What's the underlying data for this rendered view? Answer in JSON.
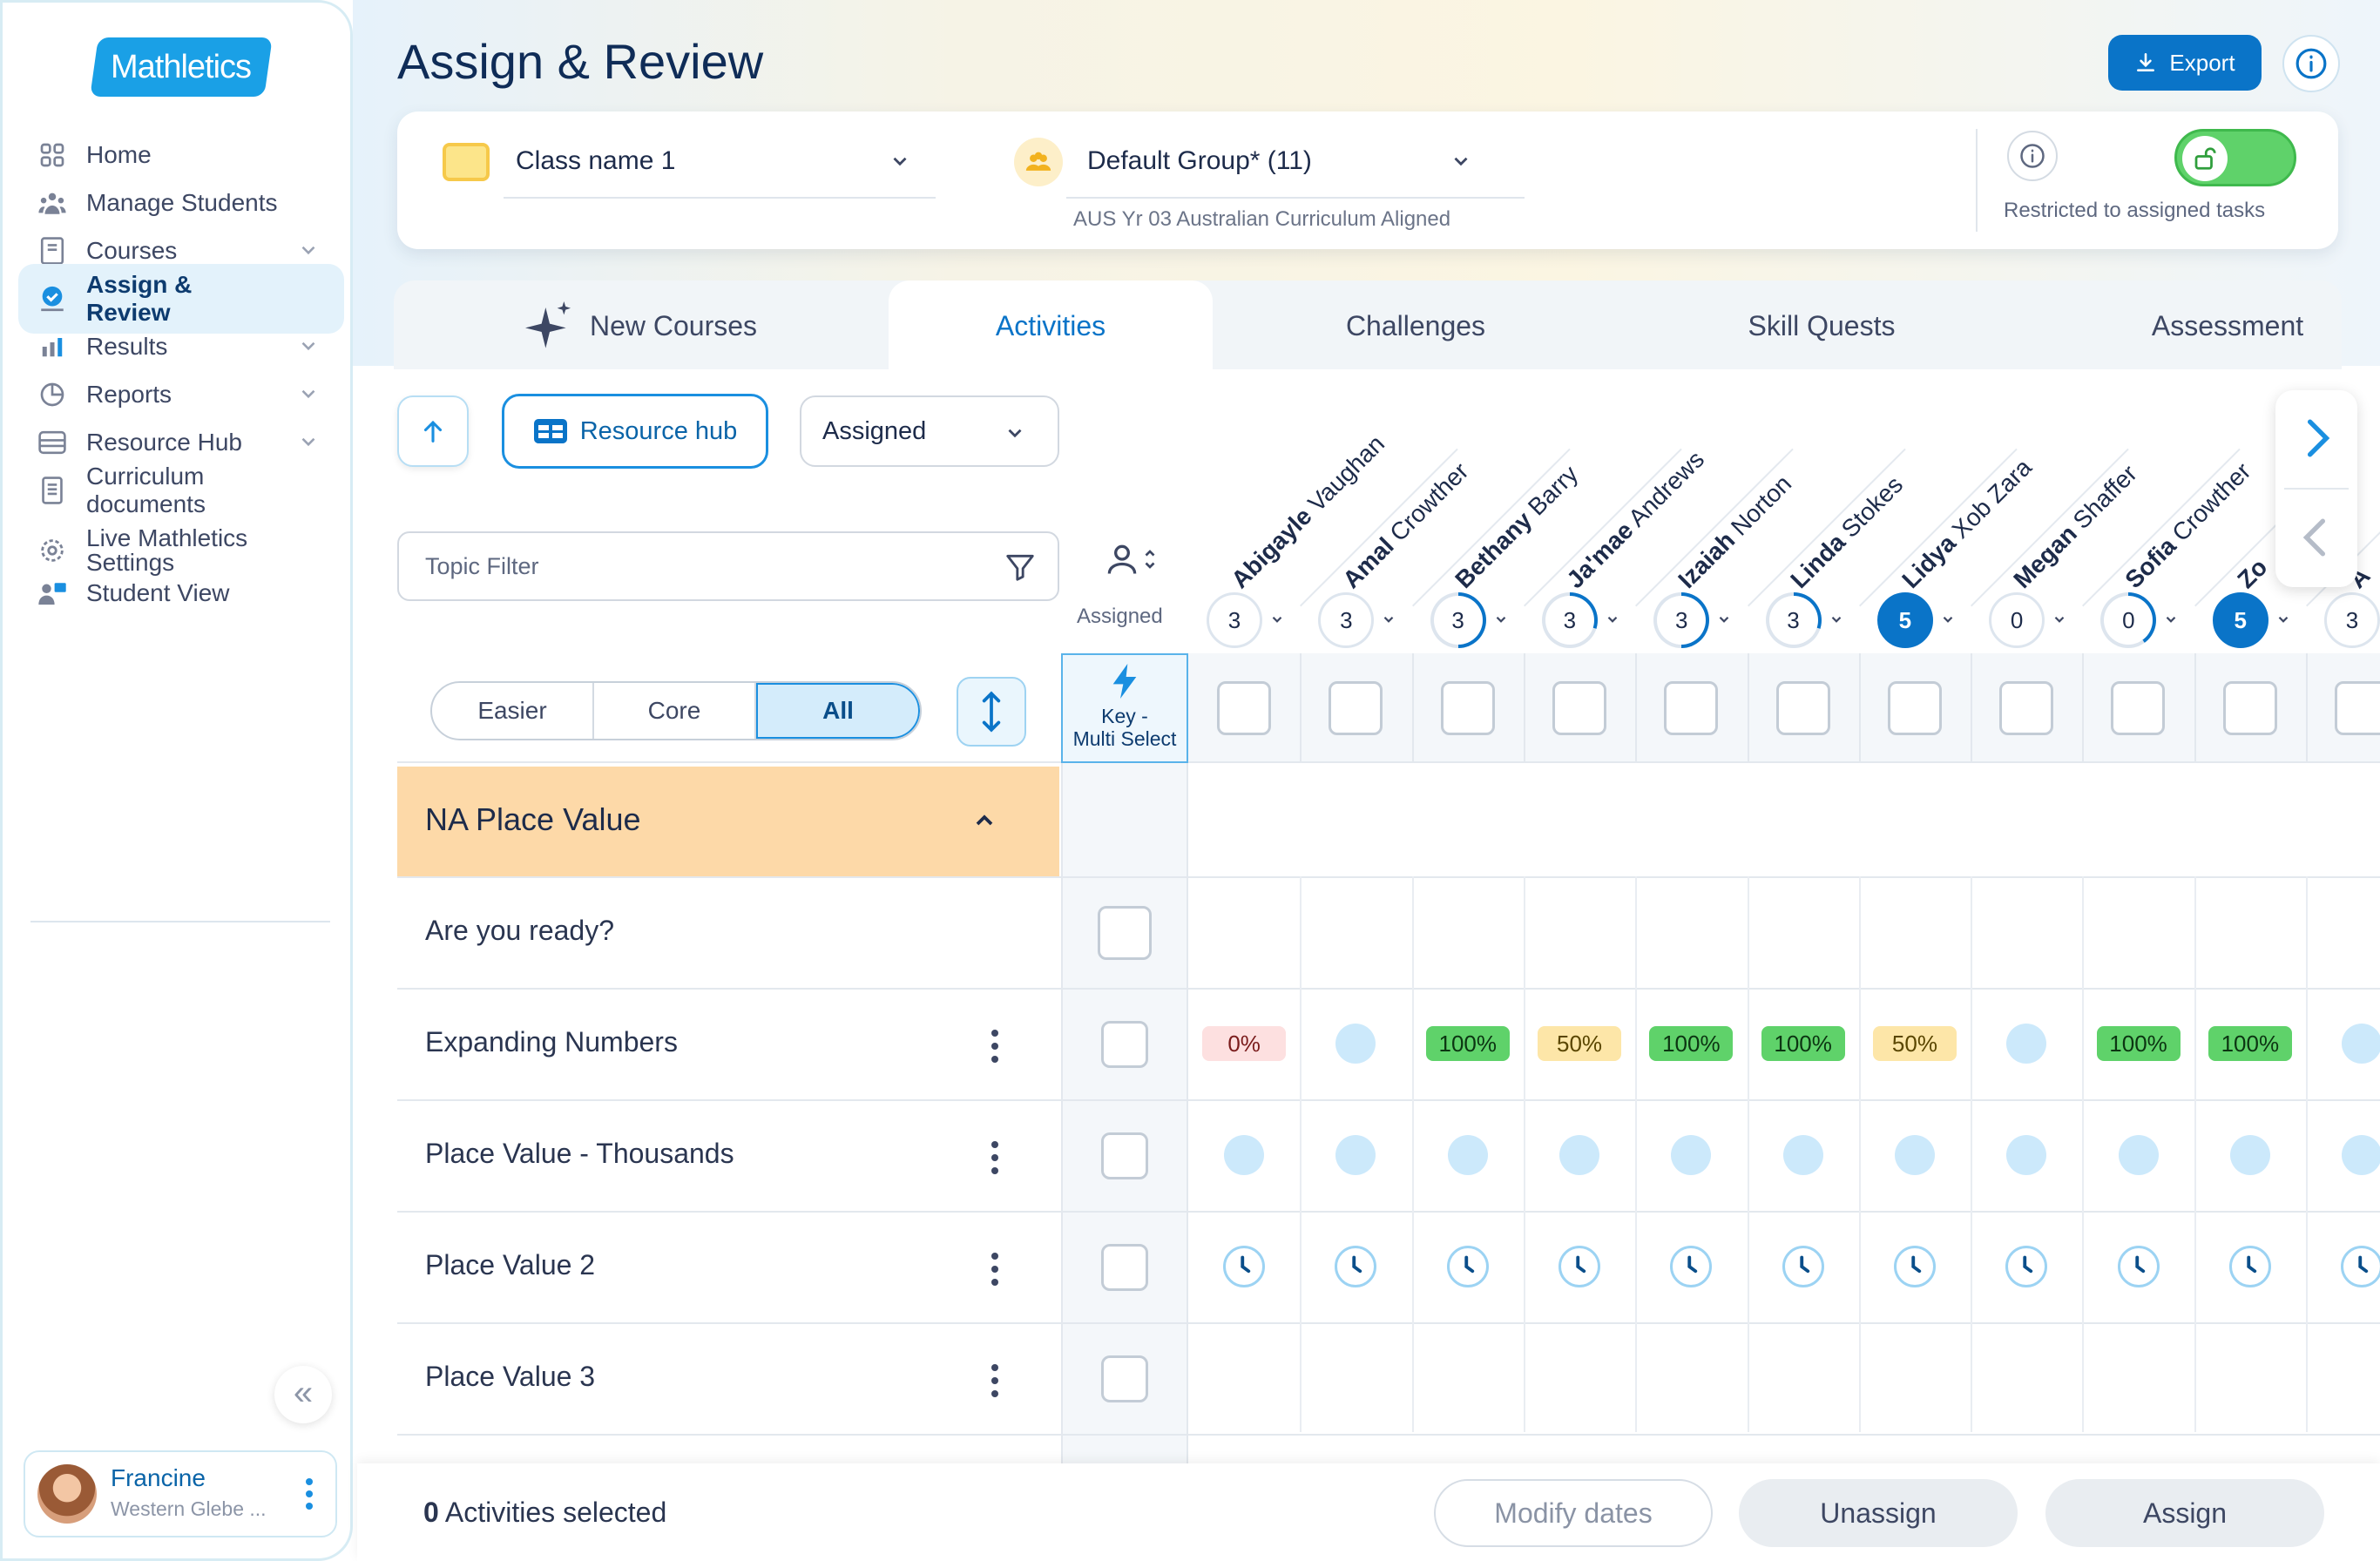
{
  "app": {
    "logo": "Mathletics",
    "page_title": "Assign & Review",
    "export_label": "Export"
  },
  "sidebar": {
    "items": [
      {
        "label": "Home",
        "icon": "grid-icon",
        "has_chevron": false,
        "active": false
      },
      {
        "label": "Manage Students",
        "icon": "students-icon",
        "has_chevron": false,
        "active": false
      },
      {
        "label": "Courses",
        "icon": "courses-icon",
        "has_chevron": true,
        "active": false
      },
      {
        "label": "Assign & Review",
        "icon": "assign-check-icon",
        "has_chevron": false,
        "active": true
      },
      {
        "label": "Results",
        "icon": "bar-chart-icon",
        "has_chevron": true,
        "active": false
      },
      {
        "label": "Reports",
        "icon": "pie-chart-icon",
        "has_chevron": true,
        "active": false
      },
      {
        "label": "Resource Hub",
        "icon": "resource-hub-icon",
        "has_chevron": true,
        "active": false
      },
      {
        "label": "Curriculum documents",
        "icon": "document-icon",
        "has_chevron": false,
        "active": false
      },
      {
        "label": "Live Mathletics Settings",
        "icon": "settings-icon",
        "has_chevron": false,
        "active": false
      },
      {
        "label": "Student View",
        "icon": "student-view-icon",
        "has_chevron": false,
        "active": false
      }
    ],
    "user": {
      "name": "Francine",
      "school": "Western Glebe ..."
    }
  },
  "header": {
    "class_name": "Class name 1",
    "group": "Default Group* (11)",
    "curriculum": "AUS Yr 03 Australian Curriculum Aligned",
    "restricted_label": "Restricted to assigned tasks",
    "restricted_on": true
  },
  "tabs": [
    {
      "label": "New Courses",
      "active": false
    },
    {
      "label": "Activities",
      "active": true
    },
    {
      "label": "Challenges",
      "active": false
    },
    {
      "label": "Skill Quests",
      "active": false
    },
    {
      "label": "Assessment",
      "active": false
    }
  ],
  "toolbar": {
    "resource_hub": "Resource hub",
    "assigned_select": "Assigned",
    "topic_placeholder": "Topic Filter",
    "assigned_label": "Assigned",
    "levels": [
      "Easier",
      "Core",
      "All"
    ],
    "active_level": "All",
    "key_line1": "Key -",
    "key_line2": "Multi Select"
  },
  "students": [
    {
      "first": "Abigayle",
      "last": "Vaughan",
      "count": "3",
      "progress": 0
    },
    {
      "first": "Amal",
      "last": "Crowther",
      "count": "3",
      "progress": 0
    },
    {
      "first": "Bethany",
      "last": "Barry",
      "count": "3",
      "progress": 0.5
    },
    {
      "first": "Ja'mae",
      "last": "Andrews",
      "count": "3",
      "progress": 0.3
    },
    {
      "first": "Izaiah",
      "last": "Norton",
      "count": "3",
      "progress": 0.5
    },
    {
      "first": "Linda",
      "last": "Stokes",
      "count": "3",
      "progress": 0.3
    },
    {
      "first": "Lidya",
      "last": "Xob Zara",
      "count": "5",
      "progress": 1
    },
    {
      "first": "Megan",
      "last": "Shaffer",
      "count": "0",
      "progress": 0
    },
    {
      "first": "Sofia",
      "last": "Crowther",
      "count": "0",
      "progress": 0.4
    },
    {
      "first": "Zo",
      "last": "",
      "count": "5",
      "progress": 1
    },
    {
      "first": "A",
      "last": "",
      "count": "3",
      "progress": 0
    }
  ],
  "topic": {
    "title": "NA Place Value"
  },
  "activities": [
    {
      "name": "Are you ready?",
      "has_menu": false,
      "cells": []
    },
    {
      "name": "Expanding Numbers",
      "has_menu": true,
      "cells": [
        "0%",
        "dot",
        "100%",
        "50%",
        "100%",
        "100%",
        "50%",
        "dot",
        "100%",
        "100%",
        "dot"
      ]
    },
    {
      "name": "Place Value - Thousands",
      "has_menu": true,
      "cells": [
        "dot",
        "dot",
        "dot",
        "dot",
        "dot",
        "dot",
        "dot",
        "dot",
        "dot",
        "dot",
        "dot"
      ]
    },
    {
      "name": "Place Value 2",
      "has_menu": true,
      "cells": [
        "clock",
        "clock",
        "clock",
        "clock",
        "clock",
        "clock",
        "clock",
        "clock",
        "clock",
        "clock",
        "clock"
      ]
    },
    {
      "name": "Place Value 3",
      "has_menu": true,
      "cells": []
    }
  ],
  "footer": {
    "selected_count": "0",
    "selected_label": "Activities selected",
    "modify": "Modify dates",
    "unassign": "Unassign",
    "assign": "Assign"
  }
}
